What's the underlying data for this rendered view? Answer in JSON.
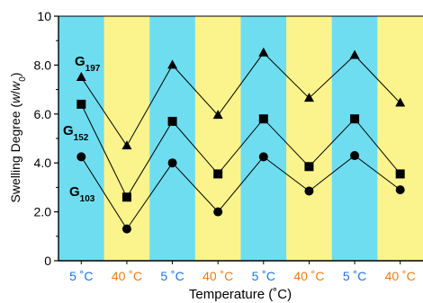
{
  "chart_data": {
    "type": "line",
    "title": "",
    "xlabel": "Temperature (˚C)",
    "ylabel": "Swelling Degree (w/w0)",
    "ylim": [
      0,
      10
    ],
    "y_ticks": [
      "0",
      "2.0",
      "4.0",
      "6.0",
      "8.0",
      "10"
    ],
    "categories": [
      "5 ˚C",
      "40 ˚C",
      "5 ˚C",
      "40 ˚C",
      "5 ˚C",
      "40 ˚C",
      "5 ˚C",
      "40 ˚C"
    ],
    "category_colors": [
      "#1E74E8",
      "#F07A12",
      "#1E74E8",
      "#F07A12",
      "#1E74E8",
      "#F07A12",
      "#1E74E8",
      "#F07A12"
    ],
    "band_colors": {
      "cold": "#6FDDF0",
      "hot": "#FBF48C"
    },
    "grid": false,
    "series": [
      {
        "name": "G197",
        "label_base": "G",
        "label_sub": "197",
        "marker": "triangle",
        "values": [
          7.5,
          4.7,
          8.0,
          5.95,
          8.5,
          6.65,
          8.4,
          6.45
        ]
      },
      {
        "name": "G152",
        "label_base": "G",
        "label_sub": "152",
        "marker": "square",
        "values": [
          6.4,
          2.6,
          5.7,
          3.55,
          5.8,
          3.85,
          5.8,
          3.55
        ]
      },
      {
        "name": "G103",
        "label_base": "G",
        "label_sub": "103",
        "marker": "circle",
        "values": [
          4.25,
          1.3,
          4.0,
          2.0,
          4.25,
          2.85,
          4.3,
          2.9
        ]
      }
    ]
  }
}
